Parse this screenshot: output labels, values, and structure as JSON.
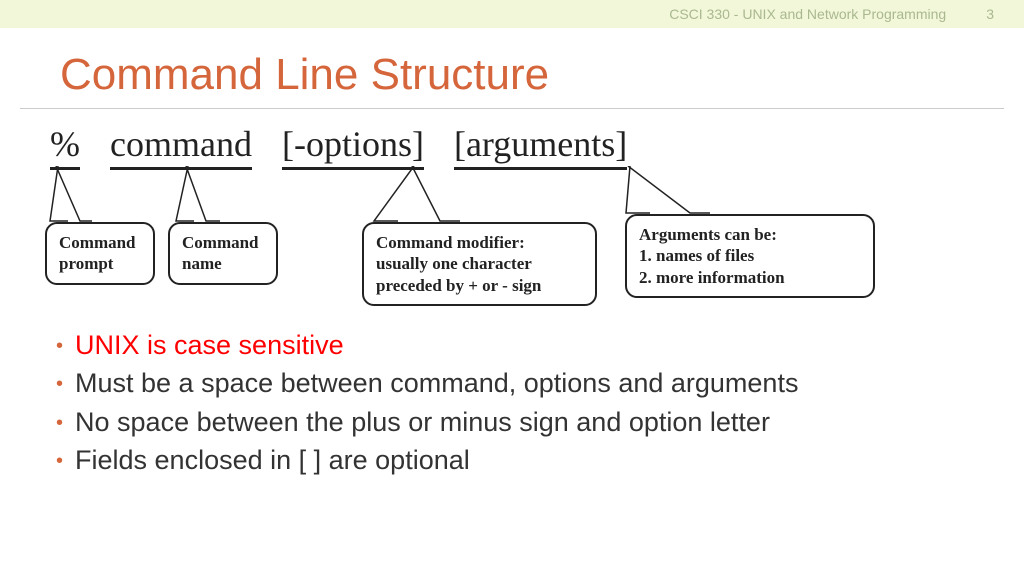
{
  "header": {
    "course": "CSCI 330 - UNIX and Network Programming",
    "page_num": "3"
  },
  "title": "Command Line Structure",
  "syntax": {
    "prompt": "%",
    "command": "command",
    "options": "[-options]",
    "arguments": "[arguments]"
  },
  "callouts": {
    "c1": "Command\nprompt",
    "c2": "Command\nname",
    "c3": "Command modifier:\nusually one character\npreceded by + or - sign",
    "c4": "Arguments can be:\n1. names of files\n2. more information"
  },
  "bullets": {
    "b1": "UNIX is case sensitive",
    "b2": "Must be a space between command, options and arguments",
    "b3": "No space between the plus or minus sign and option letter",
    "b4": "Fields enclosed in [ ] are optional"
  },
  "colors": {
    "accent": "#d5653a",
    "header_bg": "#f3f7da",
    "header_text": "#a9b88f",
    "red": "#ff0000",
    "border": "#222222"
  }
}
